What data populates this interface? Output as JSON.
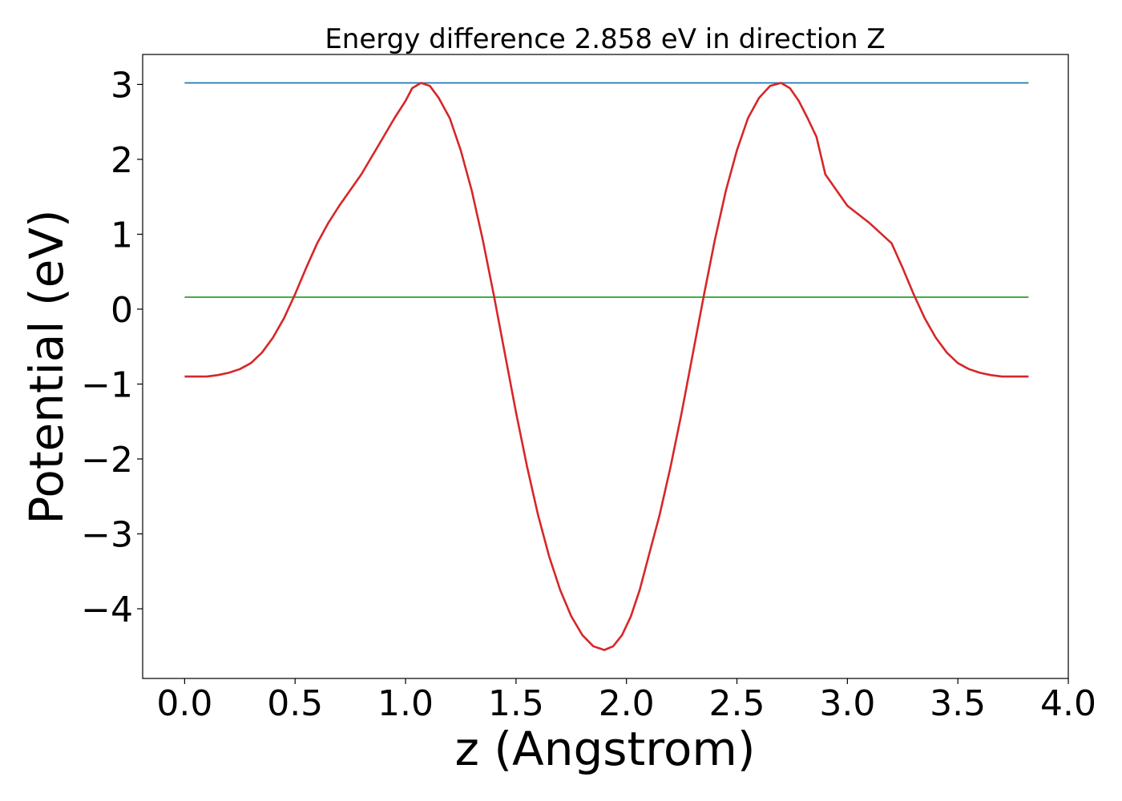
{
  "chart_data": {
    "type": "line",
    "title": "Energy difference 2.858 eV in direction Z",
    "xlabel": "z (Angstrom)",
    "ylabel": "Potential (eV)",
    "xlim": [
      -0.19,
      4.0
    ],
    "ylim": [
      -4.93,
      3.4
    ],
    "grid": false,
    "x_ticks": [
      0.0,
      0.5,
      1.0,
      1.5,
      2.0,
      2.5,
      3.0,
      3.5,
      4.0
    ],
    "x_tick_labels": [
      "0.0",
      "0.5",
      "1.0",
      "1.5",
      "2.0",
      "2.5",
      "3.0",
      "3.5",
      "4.0"
    ],
    "y_ticks": [
      3,
      2,
      1,
      0,
      -1,
      -2,
      -3,
      -4
    ],
    "y_tick_labels": [
      "3",
      "2",
      "1",
      "0",
      "−1",
      "−2",
      "−3",
      "−4"
    ],
    "series": [
      {
        "color": "#1f77b4",
        "x": [
          0.0,
          3.82
        ],
        "y": [
          3.02,
          3.02
        ]
      },
      {
        "color": "#2ca02c",
        "x": [
          0.0,
          3.82
        ],
        "y": [
          0.16,
          0.16
        ]
      },
      {
        "color": "#d62728",
        "x": [
          0.0,
          0.1,
          0.15,
          0.2,
          0.25,
          0.3,
          0.35,
          0.4,
          0.45,
          0.5,
          0.55,
          0.6,
          0.65,
          0.7,
          0.8,
          0.9,
          0.95,
          1.0,
          1.03,
          1.07,
          1.11,
          1.15,
          1.2,
          1.25,
          1.3,
          1.35,
          1.4,
          1.45,
          1.5,
          1.55,
          1.6,
          1.65,
          1.7,
          1.75,
          1.8,
          1.85,
          1.9,
          1.94,
          1.98,
          2.02,
          2.06,
          2.1,
          2.15,
          2.2,
          2.25,
          2.3,
          2.35,
          2.4,
          2.45,
          2.5,
          2.55,
          2.6,
          2.65,
          2.7,
          2.74,
          2.78,
          2.82,
          2.86,
          2.9,
          3.0,
          3.1,
          3.2,
          3.25,
          3.3,
          3.35,
          3.4,
          3.45,
          3.5,
          3.55,
          3.6,
          3.65,
          3.7,
          3.75,
          3.82
        ],
        "y": [
          -0.9,
          -0.9,
          -0.88,
          -0.85,
          -0.8,
          -0.72,
          -0.58,
          -0.38,
          -0.12,
          0.2,
          0.55,
          0.88,
          1.15,
          1.38,
          1.8,
          2.3,
          2.55,
          2.78,
          2.95,
          3.02,
          2.98,
          2.82,
          2.55,
          2.12,
          1.58,
          0.92,
          0.18,
          -0.6,
          -1.38,
          -2.1,
          -2.75,
          -3.3,
          -3.75,
          -4.1,
          -4.35,
          -4.5,
          -4.55,
          -4.5,
          -4.35,
          -4.1,
          -3.75,
          -3.3,
          -2.75,
          -2.1,
          -1.38,
          -0.6,
          0.18,
          0.92,
          1.58,
          2.12,
          2.55,
          2.82,
          2.98,
          3.02,
          2.95,
          2.78,
          2.55,
          2.3,
          1.8,
          1.38,
          1.15,
          0.88,
          0.55,
          0.2,
          -0.12,
          -0.38,
          -0.58,
          -0.72,
          -0.8,
          -0.85,
          -0.88,
          -0.9,
          -0.9,
          -0.9
        ]
      }
    ]
  }
}
